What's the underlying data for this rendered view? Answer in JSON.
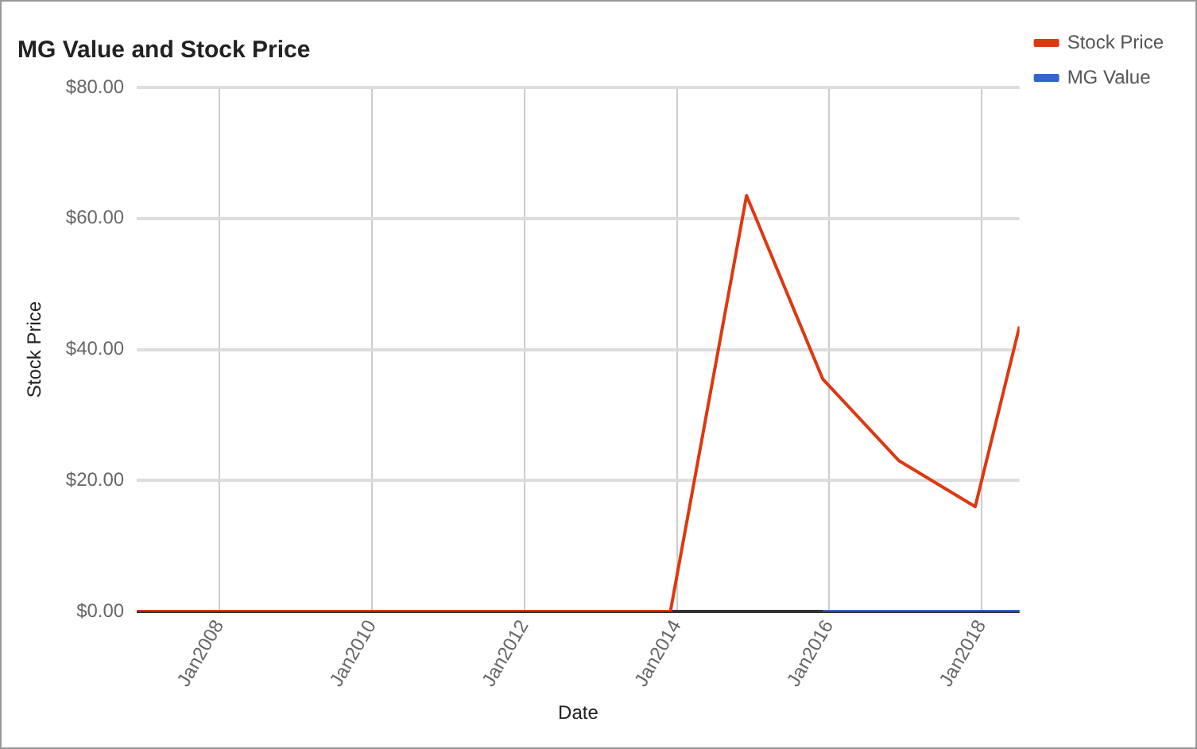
{
  "chart_data": {
    "type": "line",
    "title": "MG Value and Stock Price",
    "xlabel": "Date",
    "ylabel": "Stock Price",
    "x": [
      "2006-12",
      "2007-12",
      "2008-12",
      "2009-12",
      "2010-12",
      "2011-12",
      "2012-12",
      "2013-12",
      "2014-12",
      "2015-12",
      "2016-12",
      "2017-12",
      "2018-07"
    ],
    "series": [
      {
        "name": "MG Value",
        "color": "#3366cc",
        "values": [
          null,
          null,
          null,
          null,
          null,
          null,
          null,
          null,
          null,
          0,
          0,
          0,
          0
        ]
      },
      {
        "name": "Stock Price",
        "color": "#dc3912",
        "values": [
          0,
          0,
          0,
          0,
          0,
          0,
          0,
          0,
          63.5,
          35.5,
          23,
          16,
          43.5
        ]
      }
    ],
    "xlim": [
      "2006-12",
      "2018-07"
    ],
    "xticks": [
      {
        "value": "2008-01",
        "label": "Jan2008"
      },
      {
        "value": "2010-01",
        "label": "Jan2010"
      },
      {
        "value": "2012-01",
        "label": "Jan2012"
      },
      {
        "value": "2014-01",
        "label": "Jan2014"
      },
      {
        "value": "2016-01",
        "label": "Jan2016"
      },
      {
        "value": "2018-01",
        "label": "Jan2018"
      }
    ],
    "ylim": [
      0,
      80
    ],
    "yticks": [
      {
        "value": 0,
        "label": "$0.00"
      },
      {
        "value": 20,
        "label": "$20.00"
      },
      {
        "value": 40,
        "label": "$40.00"
      },
      {
        "value": 60,
        "label": "$60.00"
      },
      {
        "value": 80,
        "label": "$80.00"
      }
    ],
    "grid": true,
    "legend": "top right",
    "marker": "none",
    "line_style": "solid"
  }
}
